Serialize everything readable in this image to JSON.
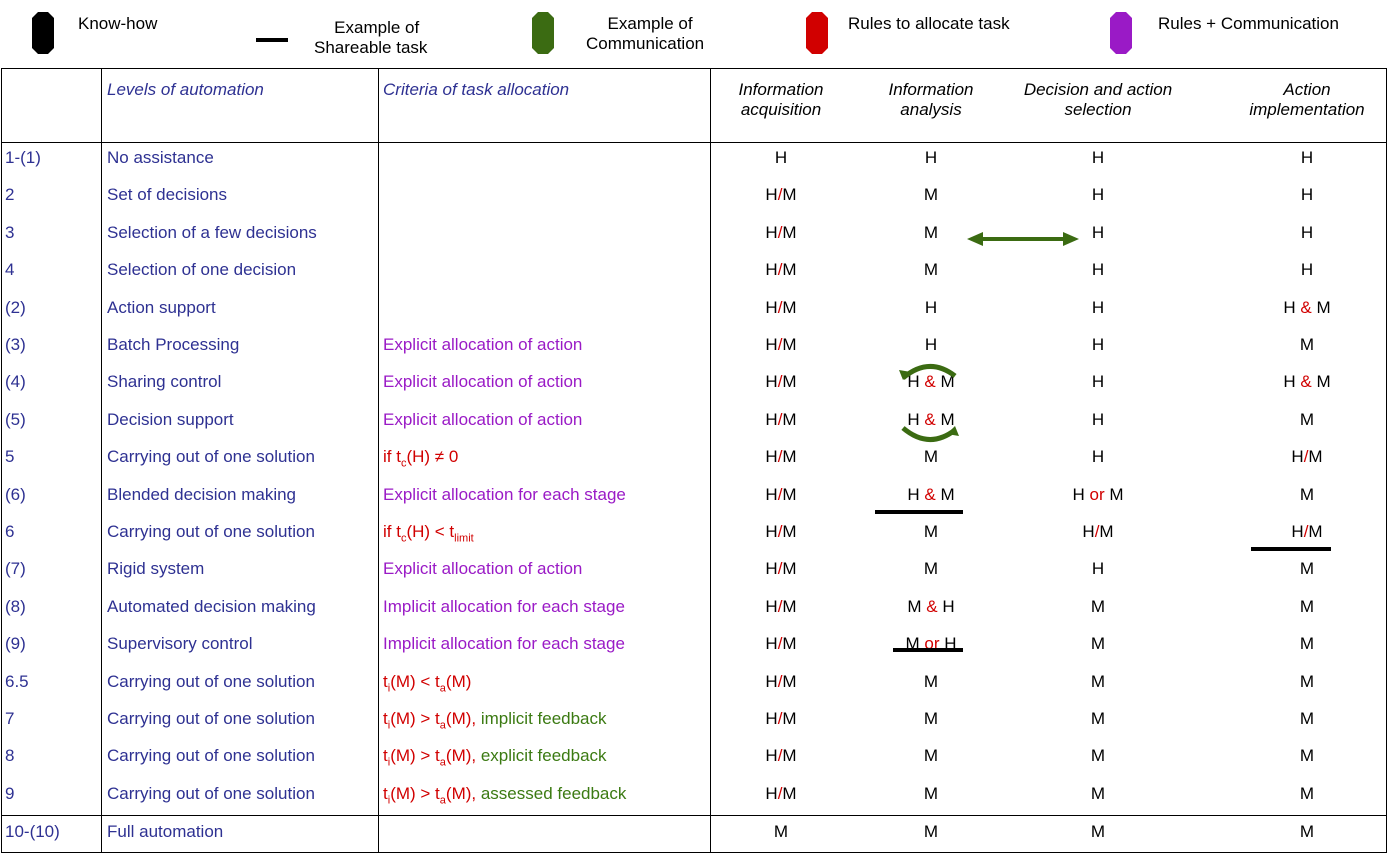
{
  "legend": [
    {
      "key": "know-how",
      "lines": [
        "Know-how"
      ],
      "color": "#000000"
    },
    {
      "key": "shareable",
      "lines": [
        "Example of",
        "Shareable task"
      ],
      "color": "#000000"
    },
    {
      "key": "communication",
      "lines": [
        "Example of",
        "Communication"
      ],
      "color": "#3b6b12"
    },
    {
      "key": "rules",
      "lines": [
        "Rules to allocate task"
      ],
      "color": "#d10000"
    },
    {
      "key": "rules-comm",
      "lines": [
        "Rules + Communication"
      ],
      "color": "#9a1ac6"
    }
  ],
  "headers": {
    "levels": "Levels of automation",
    "criteria": "Criteria of task allocation",
    "info_acq": [
      "Information",
      "acquisition"
    ],
    "info_an": [
      "Information",
      "analysis"
    ],
    "decision": [
      "Decision and action",
      "selection"
    ],
    "action": [
      "Action",
      "implementation"
    ]
  },
  "separators": {
    "slash": "/",
    "amp": "&",
    "or": "or"
  },
  "rows": [
    {
      "id": "1-(1)",
      "level": "No assistance",
      "criteria": "",
      "ia": "H",
      "an": "H",
      "dec": "H",
      "act": "H"
    },
    {
      "id": "2",
      "level": "Set of decisions",
      "criteria": "",
      "ia": "H/M",
      "an": "M",
      "dec": "H",
      "act": "H"
    },
    {
      "id": "3",
      "level": "Selection of a few decisions",
      "criteria": "",
      "ia": "H/M",
      "an": "M",
      "dec": "H",
      "act": "H"
    },
    {
      "id": "4",
      "level": "Selection of one decision",
      "criteria": "",
      "ia": "H/M",
      "an": "M",
      "dec": "H",
      "act": "H"
    },
    {
      "id": "(2)",
      "level": "Action support",
      "criteria": "",
      "ia": "H/M",
      "an": "H",
      "dec": "H",
      "act": "H & M"
    },
    {
      "id": "(3)",
      "level": "Batch Processing",
      "criteria": "Explicit allocation of action",
      "ia": "H/M",
      "an": "H",
      "dec": "H",
      "act": "M"
    },
    {
      "id": "(4)",
      "level": "Sharing control",
      "criteria": "Explicit allocation of action",
      "ia": "H/M",
      "an": "H & M",
      "dec": "H",
      "act": "H & M"
    },
    {
      "id": "(5)",
      "level": "Decision support",
      "criteria": "Explicit allocation of action",
      "ia": "H/M",
      "an": "H & M",
      "dec": "H",
      "act": "M"
    },
    {
      "id": "5",
      "level": "Carrying out of one solution",
      "criteria": "if tc(H) ≠ 0",
      "ia": "H/M",
      "an": "M",
      "dec": "H",
      "act": "H/M"
    },
    {
      "id": "(6)",
      "level": "Blended decision making",
      "criteria": "Explicit allocation for each stage",
      "ia": "H/M",
      "an": "H & M",
      "dec": "H or M",
      "act": "M"
    },
    {
      "id": "6",
      "level": "Carrying out of one solution",
      "criteria": "if tc(H) < tlimit",
      "ia": "H/M",
      "an": "M",
      "dec": "H/M",
      "act": "H/M"
    },
    {
      "id": "(7)",
      "level": "Rigid system",
      "criteria": "Explicit allocation of action",
      "ia": "H/M",
      "an": "M",
      "dec": "H",
      "act": "M"
    },
    {
      "id": "(8)",
      "level": "Automated decision making",
      "criteria": "Implicit allocation for each stage",
      "ia": "H/M",
      "an": "M & H",
      "dec": "M",
      "act": "M"
    },
    {
      "id": "(9)",
      "level": "Supervisory control",
      "criteria": "Implicit allocation for each stage",
      "ia": "H/M",
      "an": "M or H",
      "dec": "M",
      "act": "M"
    },
    {
      "id": "6.5",
      "level": "Carrying out of one solution",
      "criteria": "ti(M) < ta(M)",
      "ia": "H/M",
      "an": "M",
      "dec": "M",
      "act": "M"
    },
    {
      "id": "7",
      "level": "Carrying out of one solution",
      "criteria": "ti(M) > ta(M), implicit feedback",
      "ia": "H/M",
      "an": "M",
      "dec": "M",
      "act": "M"
    },
    {
      "id": "8",
      "level": "Carrying out of one solution",
      "criteria": "ti(M) > ta(M), explicit feedback",
      "ia": "H/M",
      "an": "M",
      "dec": "M",
      "act": "M"
    },
    {
      "id": "9",
      "level": "Carrying out of one solution",
      "criteria": "ti(M) > ta(M), assessed feedback",
      "ia": "H/M",
      "an": "M",
      "dec": "M",
      "act": "M"
    },
    {
      "id": "10-(10)",
      "level": "Full automation",
      "criteria": "",
      "ia": "M",
      "an": "M",
      "dec": "M",
      "act": "M"
    }
  ]
}
